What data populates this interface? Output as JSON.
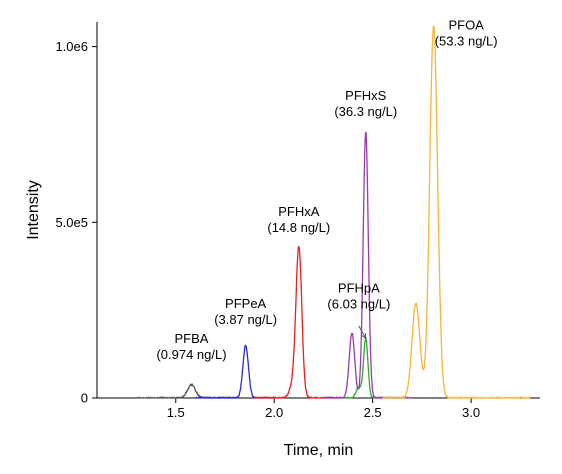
{
  "chart_data": {
    "type": "line",
    "xlabel": "Time, min",
    "ylabel": "Intensity",
    "xlim": [
      1.1,
      3.35
    ],
    "ylim": [
      0,
      1070000
    ],
    "x_ticks": [
      {
        "value": 1.5,
        "label": "1.5"
      },
      {
        "value": 2.0,
        "label": "2.0"
      },
      {
        "value": 2.5,
        "label": "2.5"
      },
      {
        "value": 3.0,
        "label": "3.0"
      }
    ],
    "y_ticks": [
      {
        "value": 0,
        "label": "0"
      },
      {
        "value": 500000,
        "label": "5.0e5"
      },
      {
        "value": 1000000,
        "label": "1.0e6"
      }
    ],
    "grid": false,
    "series": [
      {
        "name": "PFBA",
        "amount": "(0.974 ng/L)",
        "color": "#555555",
        "x_range": [
          1.3,
          1.8
        ],
        "baseline": 0,
        "peaks": [
          {
            "x": 1.58,
            "y": 38000,
            "width": 0.02
          }
        ],
        "label_anchor": [
          1.58,
          108000
        ]
      },
      {
        "name": "PFPeA",
        "amount": "(3.87 ng/L)",
        "color": "#2b2bd6",
        "x_range": [
          1.6,
          2.0
        ],
        "baseline": 0,
        "peaks": [
          {
            "x": 1.855,
            "y": 150000,
            "width": 0.014
          }
        ],
        "label_anchor": [
          1.855,
          208000
        ]
      },
      {
        "name": "PFHxA",
        "amount": "(14.8 ng/L)",
        "color": "#e62020",
        "x_range": [
          1.9,
          2.3
        ],
        "baseline": 0,
        "peaks": [
          {
            "x": 2.125,
            "y": 430000,
            "width": 0.015
          },
          {
            "x": 2.09,
            "y": 30000,
            "width": 0.015
          }
        ],
        "label_anchor": [
          2.125,
          470000
        ]
      },
      {
        "name": "PFHpA",
        "amount": "(6.03 ng/L)",
        "color": "#35a535",
        "x_range": [
          2.25,
          2.65
        ],
        "baseline": 0,
        "peaks": [
          {
            "x": 2.465,
            "y": 170000,
            "width": 0.011
          },
          {
            "x": 2.43,
            "y": 30000,
            "width": 0.014
          }
        ],
        "label_anchor": [
          2.43,
          252000
        ]
      },
      {
        "name": "PFHxS",
        "amount": "(36.3 ng/L)",
        "color": "#9a3ab0",
        "x_range": [
          2.25,
          2.7
        ],
        "baseline": 0,
        "peaks": [
          {
            "x": 2.465,
            "y": 760000,
            "width": 0.013
          },
          {
            "x": 2.395,
            "y": 185000,
            "width": 0.014
          }
        ],
        "label_anchor": [
          2.465,
          800000
        ]
      },
      {
        "name": "PFOA",
        "amount": "(53.3 ng/L)",
        "color": "#f5b43a",
        "x_range": [
          2.55,
          3.3
        ],
        "baseline": 0,
        "peaks": [
          {
            "x": 2.81,
            "y": 1060000,
            "width": 0.02
          },
          {
            "x": 2.72,
            "y": 270000,
            "width": 0.02
          }
        ],
        "label_anchor": [
          2.975,
          1000000
        ]
      }
    ],
    "annotation_arrow": {
      "series": "PFHpA",
      "from": [
        2.43,
        205000
      ],
      "to": [
        2.465,
        170000
      ]
    }
  }
}
